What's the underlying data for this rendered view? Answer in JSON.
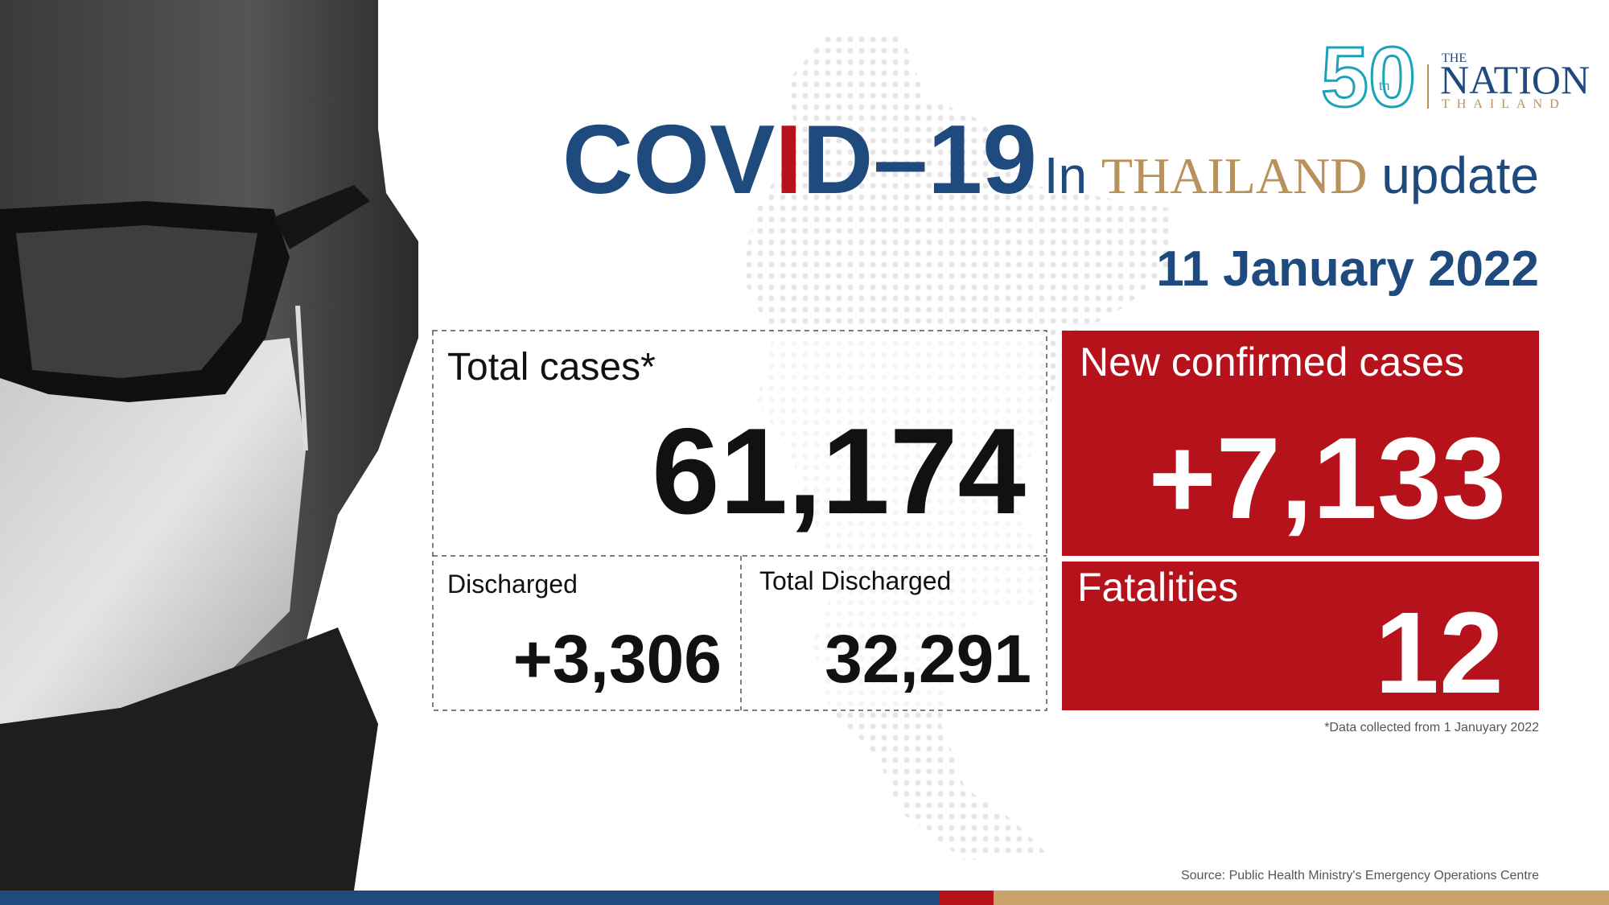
{
  "logo": {
    "number": "50",
    "suffix": "th",
    "brand_top": "THE",
    "brand": "NATION",
    "brand_sub": "THAILAND"
  },
  "header": {
    "title_a": "COV",
    "title_i": "I",
    "title_b": "D–19",
    "in": "In",
    "country": "THAILAND",
    "update": "update",
    "date": "11 January 2022"
  },
  "stats": {
    "total_cases": {
      "label": "Total cases*",
      "value": "61,174"
    },
    "discharged": {
      "label": "Discharged",
      "value": "+3,306"
    },
    "total_discharged": {
      "label": "Total Discharged",
      "value": "32,291"
    },
    "new_cases": {
      "label": "New confirmed cases",
      "value": "+7,133"
    },
    "fatalities": {
      "label": "Fatalities",
      "value": "12"
    }
  },
  "footnote": "*Data collected from 1 Januyary 2022",
  "source": "Source: Public Health Ministry's Emergency Operations Centre"
}
